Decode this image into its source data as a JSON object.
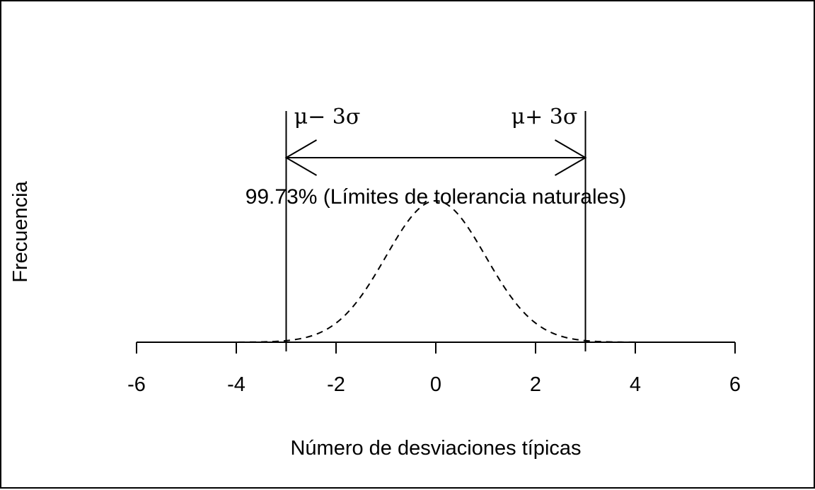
{
  "chart_data": {
    "type": "line",
    "title": "",
    "xlabel": "Número de desviaciones típicas",
    "ylabel": "Frecuencia",
    "xlim": [
      -6,
      6
    ],
    "xticks": [
      -6,
      -4,
      -2,
      0,
      2,
      4,
      6
    ],
    "xtick_labels": [
      "-6",
      "-4",
      "-2",
      "0",
      "2",
      "4",
      "6"
    ],
    "series": [
      {
        "distribution": "normal",
        "mean": 0,
        "sd": 1,
        "line_style": "dashed",
        "color": "#000000"
      }
    ],
    "limits": [
      {
        "x": -3,
        "label": "μ− 3σ"
      },
      {
        "x": 3,
        "label": "μ+ 3σ"
      }
    ],
    "range_annotation": {
      "from": -3,
      "to": 3,
      "text": "99.73% (Límites de tolerancia naturales)"
    }
  }
}
